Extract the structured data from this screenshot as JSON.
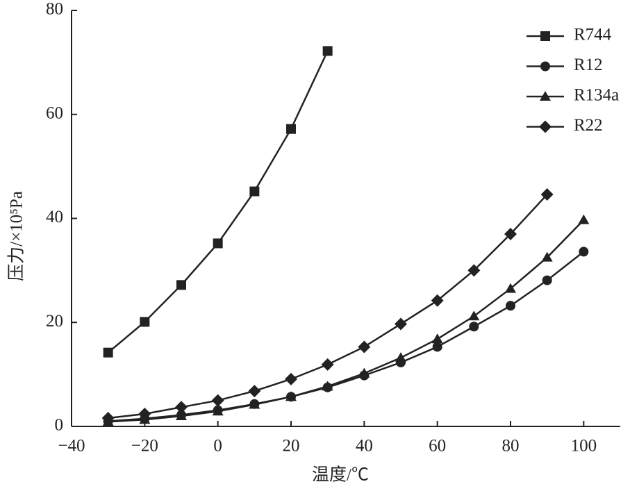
{
  "chart_data": {
    "type": "line",
    "x_label": "温度/℃",
    "y_label": "压力/×10⁵Pa",
    "xlim": [
      -40,
      110
    ],
    "ylim": [
      0,
      80
    ],
    "xticks": [
      {
        "value": -40,
        "label": "−40"
      },
      {
        "value": -20,
        "label": "−20"
      },
      0,
      20,
      40,
      60,
      80,
      100
    ],
    "yticks": [
      0,
      20,
      40,
      60,
      80
    ],
    "legend": "upper right",
    "series": [
      {
        "name": "R744",
        "marker": "square",
        "color": "#222222",
        "x": [
          -30,
          -20,
          -10,
          0,
          10,
          20,
          30
        ],
        "values": [
          14.2,
          20.1,
          27.2,
          35.2,
          45.2,
          57.2,
          72.2
        ]
      },
      {
        "name": "R12",
        "marker": "circle",
        "color": "#222222",
        "x": [
          -30,
          -20,
          -10,
          0,
          10,
          20,
          30,
          40,
          50,
          60,
          70,
          80,
          90,
          100
        ],
        "values": [
          1.0,
          1.5,
          2.2,
          3.1,
          4.3,
          5.7,
          7.5,
          9.8,
          12.3,
          15.3,
          19.2,
          23.2,
          28.1,
          33.6
        ]
      },
      {
        "name": "R134a",
        "marker": "triangle",
        "color": "#222222",
        "x": [
          -30,
          -20,
          -10,
          0,
          10,
          20,
          30,
          40,
          50,
          60,
          70,
          80,
          90,
          100
        ],
        "values": [
          0.9,
          1.3,
          2.0,
          2.9,
          4.2,
          5.7,
          7.7,
          10.2,
          13.2,
          16.8,
          21.2,
          26.5,
          32.5,
          39.7
        ]
      },
      {
        "name": "R22",
        "marker": "diamond",
        "color": "#222222",
        "x": [
          -30,
          -20,
          -10,
          0,
          10,
          20,
          30,
          40,
          50,
          60,
          70,
          80,
          90
        ],
        "values": [
          1.6,
          2.4,
          3.7,
          5.0,
          6.8,
          9.1,
          11.9,
          15.3,
          19.7,
          24.2,
          30.0,
          37.0,
          44.6
        ]
      }
    ]
  }
}
